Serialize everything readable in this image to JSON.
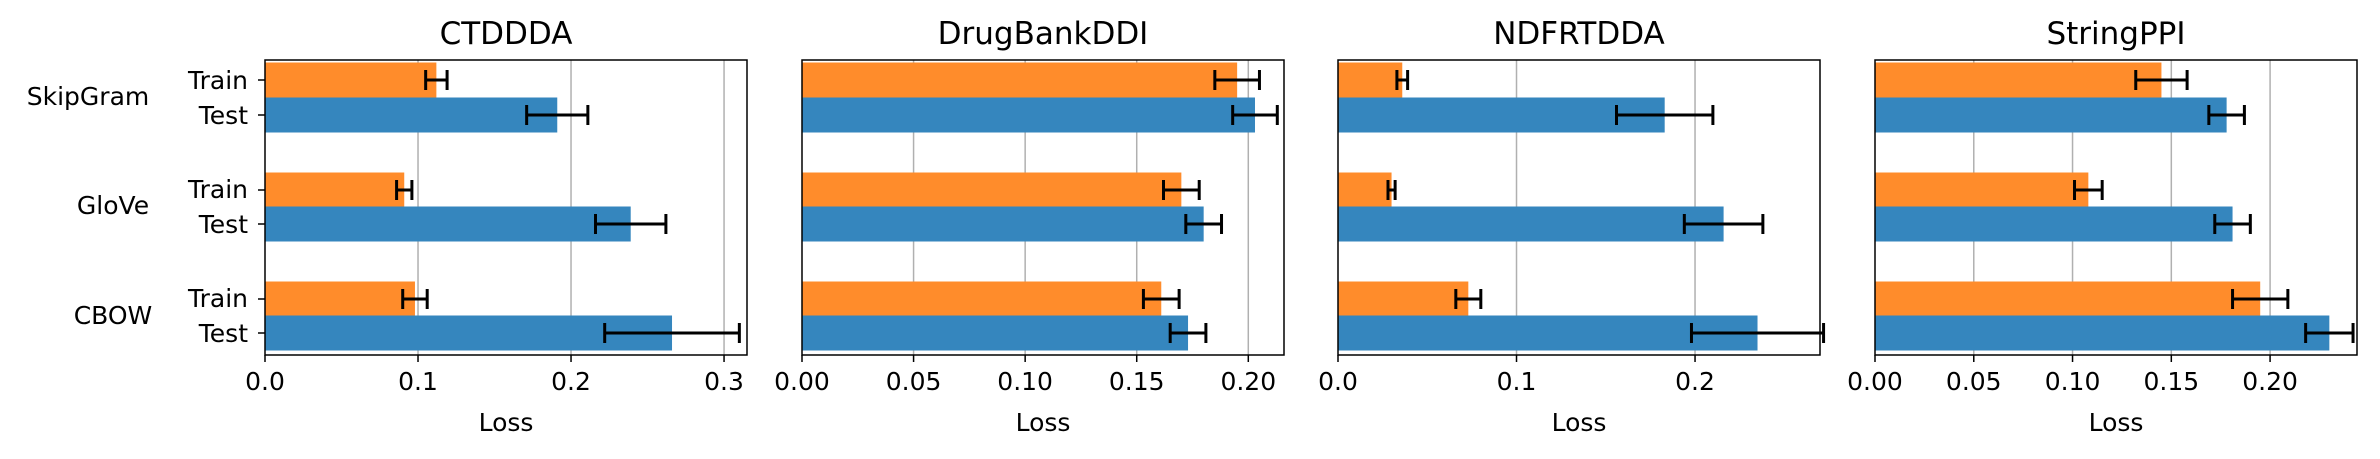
{
  "colors": {
    "train": "#ff8c2b",
    "test": "#3586be",
    "grid": "#b0b0b0",
    "error": "#000000"
  },
  "groups": [
    "SkipGram",
    "GloVe",
    "CBOW"
  ],
  "row_labels": [
    "Train",
    "Test"
  ],
  "chart_data": [
    {
      "type": "bar",
      "orientation": "horizontal",
      "title": "CTDDDA",
      "xlabel": "Loss",
      "xlim": [
        0,
        0.315
      ],
      "xticks": [
        0,
        0.1,
        0.2,
        0.3
      ],
      "xtick_labels": [
        "0.0",
        "0.1",
        "0.2",
        "0.3"
      ],
      "grid": "x",
      "categories": [
        "SkipGram",
        "GloVe",
        "CBOW"
      ],
      "series": [
        {
          "name": "Train",
          "values": [
            0.112,
            0.091,
            0.098
          ],
          "errors": [
            0.007,
            0.005,
            0.008
          ]
        },
        {
          "name": "Test",
          "values": [
            0.191,
            0.239,
            0.266
          ],
          "errors": [
            0.02,
            0.023,
            0.044
          ]
        }
      ]
    },
    {
      "type": "bar",
      "orientation": "horizontal",
      "title": "DrugBankDDI",
      "xlabel": "Loss",
      "xlim": [
        0,
        0.216
      ],
      "xticks": [
        0,
        0.05,
        0.1,
        0.15,
        0.2
      ],
      "xtick_labels": [
        "0.00",
        "0.05",
        "0.10",
        "0.15",
        "0.20"
      ],
      "grid": "x",
      "categories": [
        "SkipGram",
        "GloVe",
        "CBOW"
      ],
      "series": [
        {
          "name": "Train",
          "values": [
            0.195,
            0.17,
            0.161
          ],
          "errors": [
            0.01,
            0.008,
            0.008
          ]
        },
        {
          "name": "Test",
          "values": [
            0.203,
            0.18,
            0.173
          ],
          "errors": [
            0.01,
            0.008,
            0.008
          ]
        }
      ]
    },
    {
      "type": "bar",
      "orientation": "horizontal",
      "title": "NDFRTDDA",
      "xlabel": "Loss",
      "xlim": [
        0,
        0.27
      ],
      "xticks": [
        0,
        0.1,
        0.2
      ],
      "xtick_labels": [
        "0.0",
        "0.1",
        "0.2"
      ],
      "grid": "x",
      "categories": [
        "SkipGram",
        "GloVe",
        "CBOW"
      ],
      "series": [
        {
          "name": "Train",
          "values": [
            0.036,
            0.03,
            0.073
          ],
          "errors": [
            0.003,
            0.002,
            0.007
          ]
        },
        {
          "name": "Test",
          "values": [
            0.183,
            0.216,
            0.235
          ],
          "errors": [
            0.027,
            0.022,
            0.037
          ]
        }
      ]
    },
    {
      "type": "bar",
      "orientation": "horizontal",
      "title": "StringPPI",
      "xlabel": "Loss",
      "xlim": [
        0,
        0.244
      ],
      "xticks": [
        0,
        0.05,
        0.1,
        0.15,
        0.2
      ],
      "xtick_labels": [
        "0.00",
        "0.05",
        "0.10",
        "0.15",
        "0.20"
      ],
      "grid": "x",
      "categories": [
        "SkipGram",
        "GloVe",
        "CBOW"
      ],
      "series": [
        {
          "name": "Train",
          "values": [
            0.145,
            0.108,
            0.195
          ],
          "errors": [
            0.013,
            0.007,
            0.014
          ]
        },
        {
          "name": "Test",
          "values": [
            0.178,
            0.181,
            0.23
          ],
          "errors": [
            0.009,
            0.009,
            0.012
          ]
        }
      ]
    }
  ]
}
